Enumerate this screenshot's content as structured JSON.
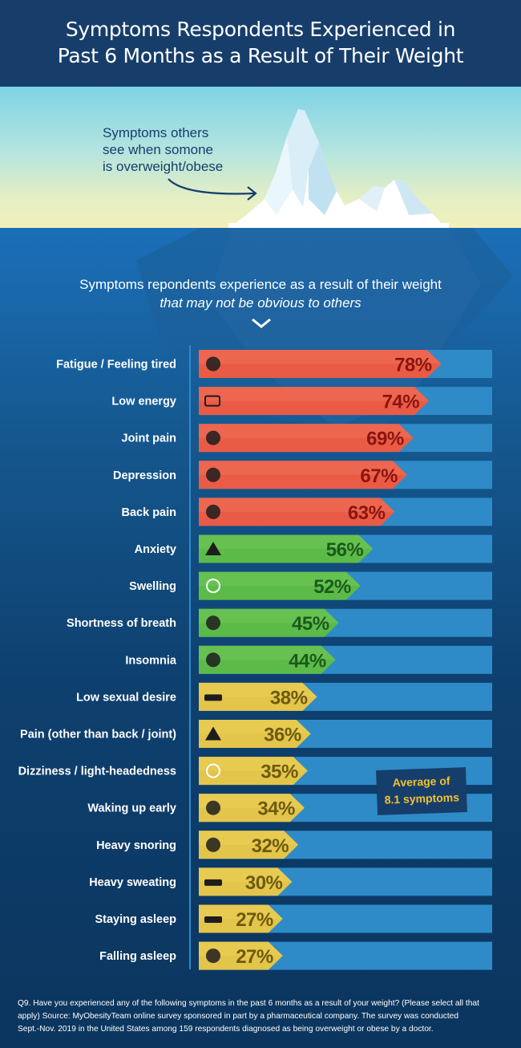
{
  "header": {
    "title_line1": "Symptoms Respondents Experienced in",
    "title_line2": "Past 6 Months as a Result of Their Weight"
  },
  "iceberg_note": {
    "line1": "Symptoms others",
    "line2": "see when somone",
    "line3": "is overweight/obese"
  },
  "subtitle": {
    "line1": "Symptoms repondents experience as a result of their weight",
    "line2": "that may not be obvious to others"
  },
  "colors": {
    "red": "#ea5b45",
    "green": "#5cbb48",
    "yellow": "#e2c54a",
    "track": "#2e8bc8"
  },
  "chart_data": {
    "type": "bar",
    "categories": [
      "Fatigue / Feeling tired",
      "Low energy",
      "Joint pain",
      "Depression",
      "Back pain",
      "Anxiety",
      "Swelling",
      "Shortness of breath",
      "Insomnia",
      "Low sexual desire",
      "Pain (other than back / joint)",
      "Dizziness / light-headedness",
      "Waking up early",
      "Heavy snoring",
      "Heavy sweating",
      "Staying asleep",
      "Falling asleep"
    ],
    "values": [
      78,
      74,
      69,
      67,
      63,
      56,
      52,
      45,
      44,
      38,
      36,
      35,
      34,
      32,
      30,
      27,
      27
    ],
    "value_labels": [
      "78%",
      "74%",
      "69%",
      "67%",
      "63%",
      "56%",
      "52%",
      "45%",
      "44%",
      "38%",
      "36%",
      "35%",
      "34%",
      "32%",
      "30%",
      "27%",
      "27%"
    ],
    "color_groups": [
      "red",
      "red",
      "red",
      "red",
      "red",
      "green",
      "green",
      "green",
      "green",
      "yellow",
      "yellow",
      "yellow",
      "yellow",
      "yellow",
      "yellow",
      "yellow",
      "yellow"
    ],
    "icons": [
      "fatigue-icon",
      "battery-icon",
      "joint-icon",
      "depression-icon",
      "spine-icon",
      "warning-icon",
      "swelling-icon",
      "lungs-icon",
      "insomnia-icon",
      "bed-icon",
      "pain-icon",
      "dizziness-icon",
      "rooster-icon",
      "snoring-icon",
      "sweating-icon",
      "sleeping-icon",
      "night-icon"
    ],
    "orientation": "horizontal",
    "xlim": [
      0,
      100
    ]
  },
  "average": {
    "line1": "Average of",
    "line2": "8.1 symptoms"
  },
  "footer": {
    "line1": "Q9. Have you experienced any of the following symptoms in the past 6 months as a result of your weight?  (Please select all that",
    "line2": "apply)  Source: MyObesityTeam online survey sponsored in part by a pharmaceutical company. The survey was conducted",
    "line3": "Sept.-Nov. 2019 in the United States among 159 respondents diagnosed as being overweight or obese by a doctor."
  }
}
